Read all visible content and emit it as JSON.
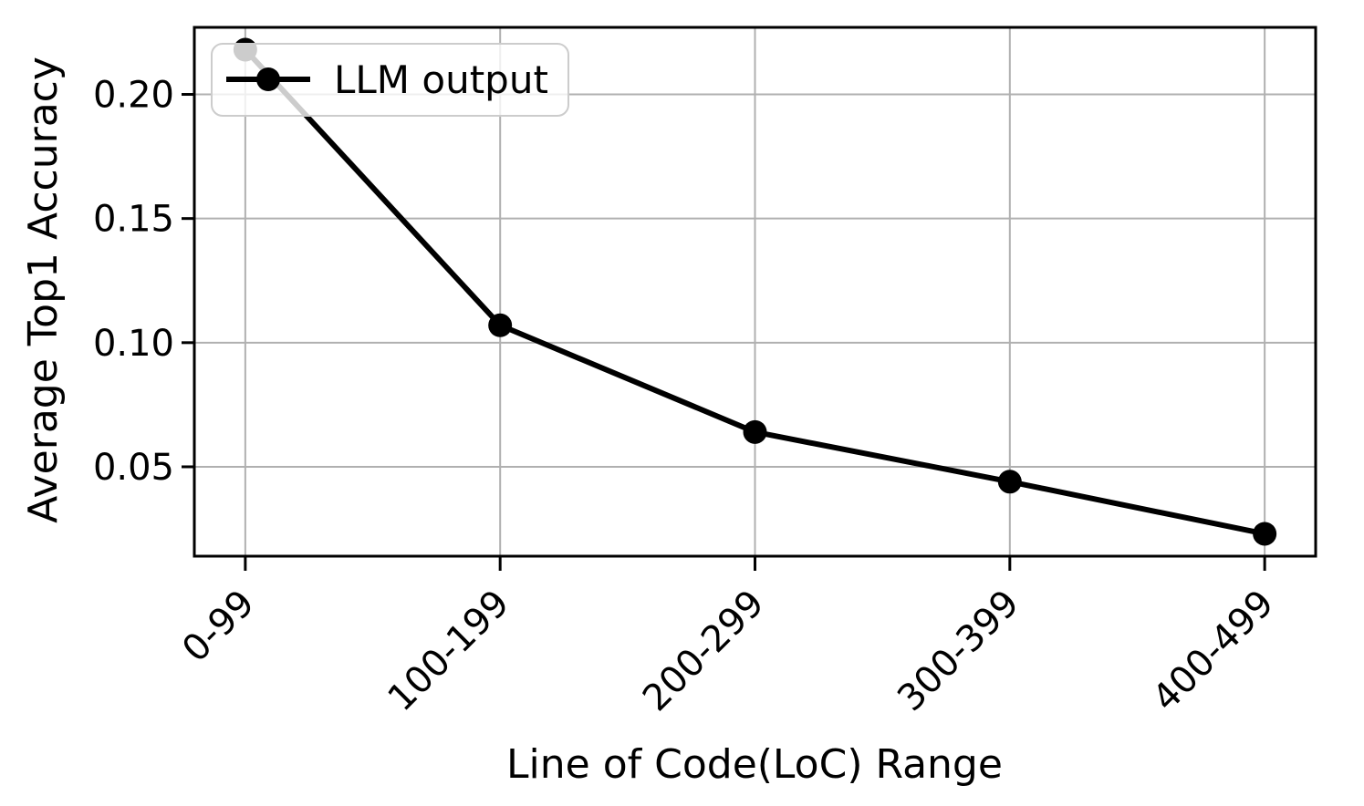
{
  "chart_data": {
    "type": "line",
    "title": "",
    "xlabel": "Line of Code(LoC) Range",
    "ylabel": "Average Top1 Accuracy",
    "categories": [
      "0-99",
      "100-199",
      "200-299",
      "300-399",
      "400-499"
    ],
    "series": [
      {
        "name": "LLM output",
        "marker": "circle",
        "color": "#000000",
        "values": [
          0.218,
          0.107,
          0.064,
          0.044,
          0.023
        ]
      }
    ],
    "yticks": [
      0.05,
      0.1,
      0.15,
      0.2
    ],
    "ytick_labels": [
      "0.05",
      "0.10",
      "0.15",
      "0.20"
    ],
    "ylim": [
      0.014,
      0.227
    ],
    "x_margin": 0.2,
    "grid": true,
    "legend": {
      "label": "LLM output",
      "position": "upper-left"
    },
    "colors": {
      "line": "#000000",
      "marker": "#000000",
      "grid": "#b0b0b0",
      "spine": "#000000",
      "tick": "#000000",
      "legend_border": "#cccccc",
      "legend_bg": "rgba(255,255,255,0.8)"
    }
  }
}
